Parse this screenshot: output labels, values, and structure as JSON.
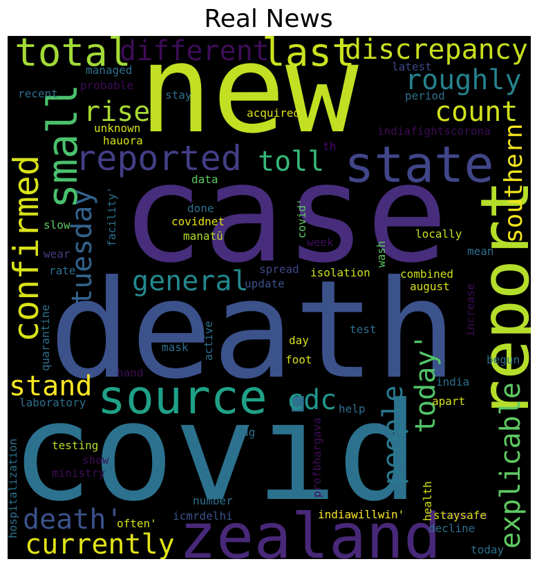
{
  "title": "Real News",
  "words": [
    {
      "key": "new",
      "text": "new",
      "color": "#c2df23"
    },
    {
      "key": "case",
      "text": "case",
      "color": "#472d7b"
    },
    {
      "key": "death",
      "text": "death",
      "color": "#3b528b"
    },
    {
      "key": "covid",
      "text": "covid",
      "color": "#2c728e"
    },
    {
      "key": "zealand",
      "text": "zealand",
      "color": "#482878"
    },
    {
      "key": "report",
      "text": "report",
      "color": "#b5de2b"
    },
    {
      "key": "state",
      "text": "state",
      "color": "#404688"
    },
    {
      "key": "source",
      "text": "source",
      "color": "#1fa187"
    },
    {
      "key": "small",
      "text": "small",
      "color": "#4ac16d"
    },
    {
      "key": "total",
      "text": "total",
      "color": "#a2da37"
    },
    {
      "key": "last",
      "text": "last",
      "color": "#cae11f"
    },
    {
      "key": "different",
      "text": "different",
      "color": "#3e0d58"
    },
    {
      "key": "discrepancy",
      "text": "discrepancy",
      "color": "#c8e020"
    },
    {
      "key": "reported",
      "text": "reported",
      "color": "#433e85"
    },
    {
      "key": "confirmed",
      "text": "confirmed",
      "color": "#d8e219"
    },
    {
      "key": "roughly",
      "text": "roughly",
      "color": "#26828e"
    },
    {
      "key": "rise",
      "text": "rise",
      "color": "#a8db34"
    },
    {
      "key": "count",
      "text": "count",
      "color": "#d0e11c"
    },
    {
      "key": "toll",
      "text": "toll",
      "color": "#35b779"
    },
    {
      "key": "tuesday",
      "text": "tuesday",
      "color": "#33638d"
    },
    {
      "key": "southern",
      "text": "southern",
      "color": "#f1e51d"
    },
    {
      "key": "general",
      "text": "general",
      "color": "#23888e"
    },
    {
      "key": "explicable",
      "text": "explicable",
      "color": "#5ec962"
    },
    {
      "key": "stand",
      "text": "stand",
      "color": "#fde725"
    },
    {
      "key": "cdc",
      "text": "cdc",
      "color": "#1f978b"
    },
    {
      "key": "today_q",
      "text": "today'",
      "color": "#52c569"
    },
    {
      "key": "people",
      "text": "people",
      "color": "#2a788e"
    },
    {
      "key": "death_q",
      "text": "death'",
      "color": "#3b528b"
    },
    {
      "key": "currently",
      "text": "currently",
      "color": "#e2e418"
    },
    {
      "key": "managed",
      "text": "managed",
      "color": "#2d708e"
    },
    {
      "key": "recent",
      "text": "recent",
      "color": "#2d708e"
    },
    {
      "key": "probable",
      "text": "probable",
      "color": "#3e0d58"
    },
    {
      "key": "stay",
      "text": "stay",
      "color": "#2d708e"
    },
    {
      "key": "latest",
      "text": "latest",
      "color": "#3e4989"
    },
    {
      "key": "period",
      "text": "period",
      "color": "#2d708e"
    },
    {
      "key": "acquired",
      "text": "acquired",
      "color": "#dde318"
    },
    {
      "key": "unknown",
      "text": "unknown",
      "color": "#d5e21a"
    },
    {
      "key": "indiafightscorona",
      "text": "indiafightscorona",
      "color": "#3e0d58"
    },
    {
      "key": "hauora",
      "text": "hauora",
      "color": "#d5e21a"
    },
    {
      "key": "th",
      "text": "th",
      "color": "#4d0870"
    },
    {
      "key": "data",
      "text": "data",
      "color": "#5ec962"
    },
    {
      "key": "facility",
      "text": "facility'",
      "color": "#2d708e"
    },
    {
      "key": "covid_q",
      "text": "covid'",
      "color": "#5ec962"
    },
    {
      "key": "done",
      "text": "done",
      "color": "#2d708e"
    },
    {
      "key": "covidnet",
      "text": "covidnet",
      "color": "#e7e419"
    },
    {
      "key": "slow",
      "text": "slow",
      "color": "#5ec962"
    },
    {
      "key": "manatu",
      "text": "manatū",
      "color": "#b5de2b"
    },
    {
      "key": "locally",
      "text": "locally",
      "color": "#c8e020"
    },
    {
      "key": "week",
      "text": "week",
      "color": "#3e0d58"
    },
    {
      "key": "mean",
      "text": "mean",
      "color": "#2d708e"
    },
    {
      "key": "wear",
      "text": "wear",
      "color": "#433e85"
    },
    {
      "key": "wash",
      "text": "wash",
      "color": "#5ec962"
    },
    {
      "key": "rate",
      "text": "rate",
      "color": "#2d708e"
    },
    {
      "key": "spread",
      "text": "spread",
      "color": "#3e4989"
    },
    {
      "key": "isolation",
      "text": "isolation",
      "color": "#d0e11c"
    },
    {
      "key": "combined",
      "text": "combined",
      "color": "#d0e11c"
    },
    {
      "key": "update",
      "text": "update",
      "color": "#3b528b"
    },
    {
      "key": "august",
      "text": "august",
      "color": "#d5e21a"
    },
    {
      "key": "increase",
      "text": "increase",
      "color": "#3e0d58"
    },
    {
      "key": "quarantine",
      "text": "quarantine",
      "color": "#2d708e"
    },
    {
      "key": "active",
      "text": "active",
      "color": "#2d708e"
    },
    {
      "key": "test",
      "text": "test",
      "color": "#2d708e"
    },
    {
      "key": "day",
      "text": "day",
      "color": "#d5e21a"
    },
    {
      "key": "mask",
      "text": "mask",
      "color": "#2d708e"
    },
    {
      "key": "foot",
      "text": "foot",
      "color": "#d5e21a"
    },
    {
      "key": "hand",
      "text": "hand",
      "color": "#3e0d58"
    },
    {
      "key": "begun",
      "text": "begun",
      "color": "#2d708e"
    },
    {
      "key": "india",
      "text": "india",
      "color": "#2d708e"
    },
    {
      "key": "laboratory",
      "text": "laboratory",
      "color": "#2d708e"
    },
    {
      "key": "apart",
      "text": "apart",
      "color": "#d5e21a"
    },
    {
      "key": "profbhargava",
      "text": "profbhargava",
      "color": "#3e0d58"
    },
    {
      "key": "help",
      "text": "help",
      "color": "#2d708e"
    },
    {
      "key": "hospitalization",
      "text": "hospitalization",
      "color": "#2d708e"
    },
    {
      "key": "dg",
      "text": "dg",
      "color": "#2d708e"
    },
    {
      "key": "testing",
      "text": "testing",
      "color": "#b5de2b"
    },
    {
      "key": "show",
      "text": "show",
      "color": "#3e0d58"
    },
    {
      "key": "ministry",
      "text": "ministry",
      "color": "#3e0d58"
    },
    {
      "key": "health",
      "text": "health",
      "color": "#d5e21a"
    },
    {
      "key": "number",
      "text": "number",
      "color": "#2d708e"
    },
    {
      "key": "remains",
      "text": "remains",
      "color": "#3e0d58"
    },
    {
      "key": "icmrdelhi",
      "text": "icmrdelhi",
      "color": "#3b528b"
    },
    {
      "key": "indiawillwin",
      "text": "indiawillwin'",
      "color": "#fde725"
    },
    {
      "key": "staysafe",
      "text": "staysafe",
      "color": "#d5e21a"
    },
    {
      "key": "often",
      "text": "often'",
      "color": "#d5e21a"
    },
    {
      "key": "decline",
      "text": "decline",
      "color": "#2d708e"
    },
    {
      "key": "today",
      "text": "today",
      "color": "#2d708e"
    }
  ]
}
